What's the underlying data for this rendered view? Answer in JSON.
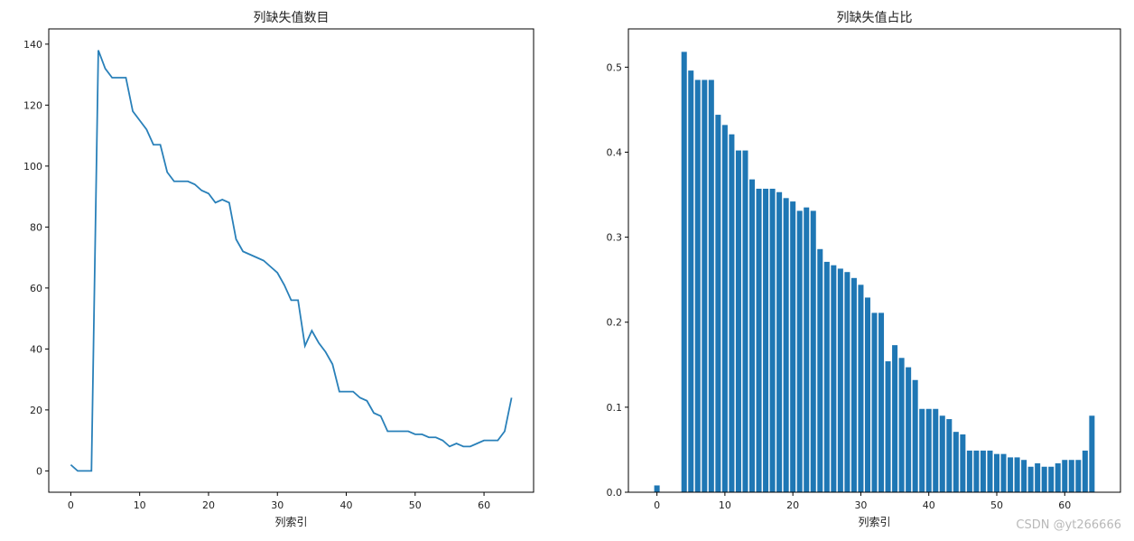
{
  "chart_data": [
    {
      "type": "line",
      "title": "列缺失值数目",
      "xlabel": "列索引",
      "ylabel": "",
      "xlim": [
        -3.2,
        67.2
      ],
      "ylim": [
        -7,
        145
      ],
      "xticks": [
        0,
        10,
        20,
        30,
        40,
        50,
        60
      ],
      "yticks": [
        0,
        20,
        40,
        60,
        80,
        100,
        120,
        140
      ],
      "grid": false,
      "color": "#2980b9",
      "series": [
        {
          "x": [
            0,
            1,
            2,
            3,
            4,
            5,
            6,
            7,
            8,
            9,
            10,
            11,
            12,
            13,
            14,
            15,
            16,
            17,
            18,
            19,
            20,
            21,
            22,
            23,
            24,
            25,
            26,
            27,
            28,
            29,
            30,
            31,
            32,
            33,
            34,
            35,
            36,
            37,
            38,
            39,
            40,
            41,
            42,
            43,
            44,
            45,
            46,
            47,
            48,
            49,
            50,
            51,
            52,
            53,
            54,
            55,
            56,
            57,
            58,
            59,
            60,
            61,
            62,
            63,
            64
          ],
          "values": [
            2,
            0,
            0,
            0,
            138,
            132,
            129,
            129,
            129,
            118,
            115,
            112,
            107,
            107,
            98,
            95,
            95,
            95,
            94,
            92,
            91,
            88,
            89,
            88,
            76,
            72,
            71,
            70,
            69,
            67,
            65,
            61,
            56,
            56,
            41,
            46,
            42,
            39,
            35,
            26,
            26,
            26,
            24,
            23,
            19,
            18,
            13,
            13,
            13,
            13,
            12,
            12,
            11,
            11,
            10,
            8,
            9,
            8,
            8,
            9,
            10,
            10,
            10,
            13,
            24
          ]
        }
      ]
    },
    {
      "type": "bar",
      "title": "列缺失值占比",
      "xlabel": "列索引",
      "ylabel": "",
      "xlim": [
        -4.2,
        68.2
      ],
      "ylim": [
        0,
        0.545
      ],
      "xticks": [
        0,
        10,
        20,
        30,
        40,
        50,
        60
      ],
      "yticks": [
        0.0,
        0.1,
        0.2,
        0.3,
        0.4,
        0.5
      ],
      "grid": false,
      "color": "#1f77b4",
      "series": [
        {
          "x": [
            0,
            1,
            2,
            3,
            4,
            5,
            6,
            7,
            8,
            9,
            10,
            11,
            12,
            13,
            14,
            15,
            16,
            17,
            18,
            19,
            20,
            21,
            22,
            23,
            24,
            25,
            26,
            27,
            28,
            29,
            30,
            31,
            32,
            33,
            34,
            35,
            36,
            37,
            38,
            39,
            40,
            41,
            42,
            43,
            44,
            45,
            46,
            47,
            48,
            49,
            50,
            51,
            52,
            53,
            54,
            55,
            56,
            57,
            58,
            59,
            60,
            61,
            62,
            63,
            64
          ],
          "values": [
            0.008,
            0,
            0,
            0,
            0.518,
            0.496,
            0.485,
            0.485,
            0.485,
            0.444,
            0.432,
            0.421,
            0.402,
            0.402,
            0.368,
            0.357,
            0.357,
            0.357,
            0.353,
            0.346,
            0.342,
            0.331,
            0.335,
            0.331,
            0.286,
            0.271,
            0.267,
            0.263,
            0.259,
            0.252,
            0.244,
            0.229,
            0.211,
            0.211,
            0.154,
            0.173,
            0.158,
            0.147,
            0.132,
            0.098,
            0.098,
            0.098,
            0.09,
            0.086,
            0.071,
            0.068,
            0.049,
            0.049,
            0.049,
            0.049,
            0.045,
            0.045,
            0.041,
            0.041,
            0.038,
            0.03,
            0.034,
            0.03,
            0.03,
            0.034,
            0.038,
            0.038,
            0.038,
            0.049,
            0.09
          ]
        }
      ]
    }
  ],
  "watermark": "CSDN @yt266666"
}
